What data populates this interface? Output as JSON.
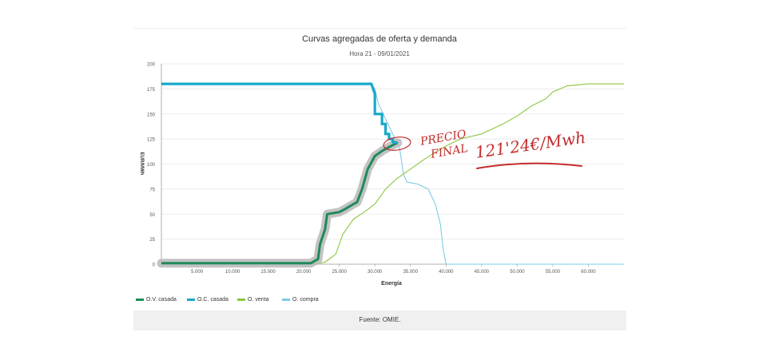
{
  "chart_data": {
    "type": "line",
    "title": "Curvas agregadas de oferta y demanda",
    "subtitle": "Hora 21 - 09/01/2021",
    "xlabel": "Energía",
    "ylabel": "EUR/MWh",
    "xlim": [
      0,
      65000
    ],
    "ylim": [
      0,
      200
    ],
    "x_ticks": [
      5000,
      10000,
      15000,
      20000,
      25000,
      30000,
      35000,
      40000,
      45000,
      50000,
      55000,
      60000
    ],
    "x_tick_labels": [
      "5.000",
      "10.000",
      "15.000",
      "20.000",
      "25.000",
      "30.000",
      "35.000",
      "40.000",
      "45.000",
      "50.000",
      "55.000",
      "60.000"
    ],
    "y_ticks": [
      0,
      25,
      50,
      75,
      100,
      125,
      150,
      175,
      200
    ],
    "y_tick_labels": [
      "0",
      "25",
      "50",
      "75",
      "100",
      "125",
      "150",
      "175",
      "200"
    ],
    "grid": "horizontal",
    "legend_position": "bottom-left",
    "series": [
      {
        "name": "O.V. casada",
        "color": "#1f8a5a",
        "x": [
          0,
          10000,
          21000,
          22000,
          22300,
          23000,
          23300,
          25000,
          25800,
          26500,
          27500,
          28200,
          29000,
          30000,
          31000,
          32000,
          32800,
          33200
        ],
        "y": [
          1,
          1,
          1,
          5,
          20,
          35,
          50,
          52,
          55,
          58,
          62,
          75,
          95,
          108,
          113,
          117,
          120,
          121.24
        ]
      },
      {
        "name": "O.C. casada",
        "color": "#17a8c9",
        "x": [
          0,
          29500,
          29600,
          30000,
          30000,
          31000,
          31000,
          31500,
          31500,
          32000,
          32000,
          32500,
          32500,
          33200
        ],
        "y": [
          180,
          180,
          178,
          170,
          150,
          150,
          140,
          140,
          130,
          130,
          125,
          125,
          122,
          121.24
        ]
      },
      {
        "name": "O. venta",
        "color": "#8cc63f",
        "x": [
          0,
          20000,
          21800,
          23000,
          24500,
          25500,
          27000,
          28500,
          30000,
          31500,
          33000,
          35000,
          37000,
          40000,
          42000,
          45000,
          48000,
          50000,
          52000,
          54000,
          55000,
          57000,
          60000,
          65000
        ],
        "y": [
          0,
          0,
          0.5,
          2,
          10,
          30,
          45,
          52,
          60,
          75,
          85,
          95,
          105,
          118,
          125,
          130,
          140,
          148,
          158,
          165,
          172,
          178,
          180,
          180
        ]
      },
      {
        "name": "O. compra",
        "color": "#7ecce6",
        "x": [
          0,
          29500,
          30000,
          30500,
          31500,
          32500,
          33500,
          34000,
          34500,
          36000,
          37500,
          38500,
          39200,
          39600,
          40000,
          45000,
          51000,
          65000
        ],
        "y": [
          180,
          180,
          175,
          160,
          145,
          130,
          115,
          90,
          82,
          80,
          75,
          60,
          40,
          15,
          0,
          0,
          0,
          0
        ]
      }
    ],
    "annotations": {
      "price_label_line1": "PRECIO",
      "price_label_line2": "FINAL",
      "price_value": "121'24€/Mwh"
    }
  },
  "source": {
    "label": "Fuente: OMIE."
  }
}
